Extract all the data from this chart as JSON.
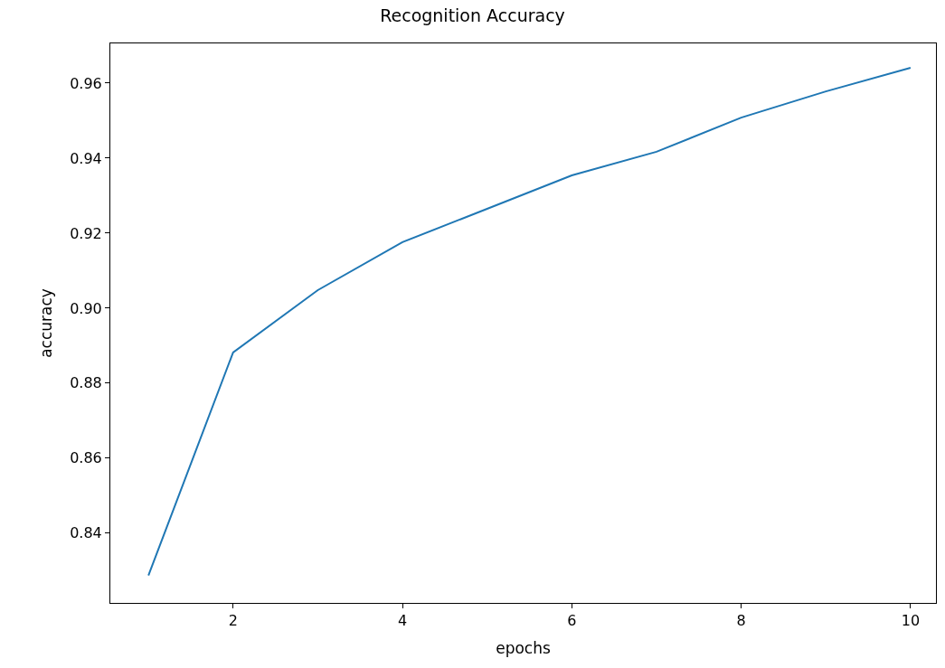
{
  "chart_data": {
    "type": "line",
    "title": "Recognition Accuracy",
    "xlabel": "epochs",
    "ylabel": "accuracy",
    "x": [
      1,
      2,
      3,
      4,
      5,
      6,
      7,
      8,
      9,
      10
    ],
    "series": [
      {
        "color": "#1f77b4",
        "values": [
          0.8287,
          0.8882,
          0.9048,
          0.9176,
          0.9265,
          0.9354,
          0.9417,
          0.9508,
          0.9578,
          0.9641
        ]
      }
    ],
    "xlim": [
      0.55,
      10.3
    ],
    "xticks": [
      2,
      4,
      6,
      8,
      10
    ],
    "ylim": [
      0.8214,
      0.9706
    ],
    "yticks": [
      0.84,
      0.86,
      0.88,
      {
        "value": 0.9,
        "label": "0.90"
      },
      0.92,
      0.94,
      0.96
    ],
    "marker": "none",
    "line_style": "solid"
  }
}
